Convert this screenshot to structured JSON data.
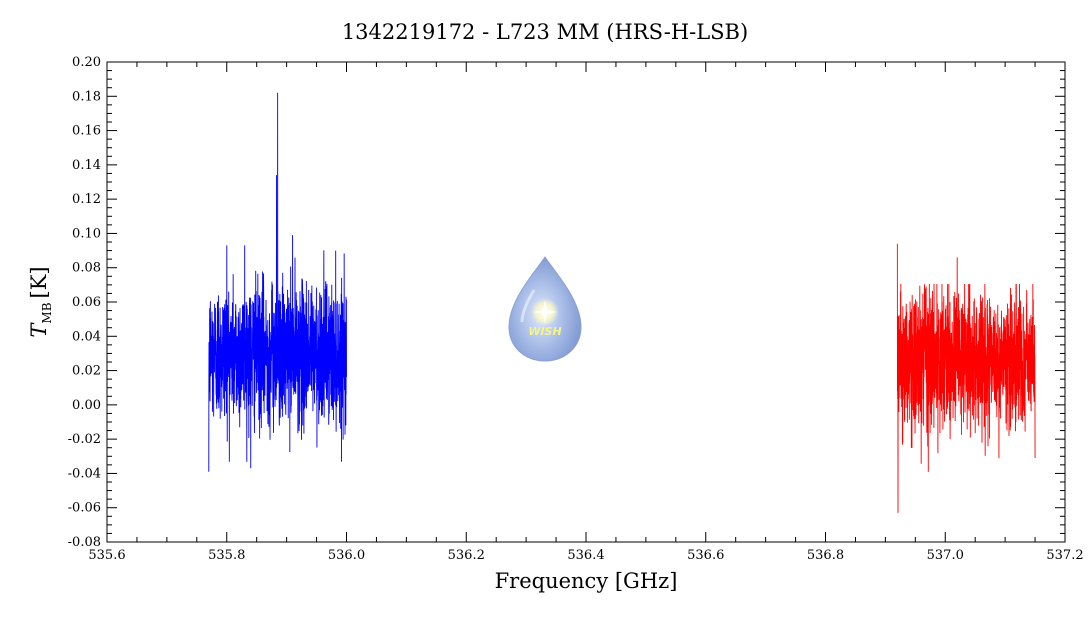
{
  "chart_data": {
    "type": "line",
    "title": "1342219172 - L723 MM (HRS-H-LSB)",
    "xlabel": "Frequency [GHz]",
    "ylabel": {
      "main": "T",
      "sub": "MB",
      "unit": "[K]"
    },
    "xlim": [
      535.6,
      537.2
    ],
    "ylim": [
      -0.08,
      0.2
    ],
    "x_ticks": [
      "535.6",
      "535.8",
      "536.0",
      "536.2",
      "536.4",
      "536.6",
      "536.8",
      "537.0",
      "537.2"
    ],
    "y_ticks": [
      "-0.08",
      "-0.06",
      "-0.04",
      "-0.02",
      "0.00",
      "0.02",
      "0.04",
      "0.06",
      "0.08",
      "0.10",
      "0.12",
      "0.14",
      "0.16",
      "0.18",
      "0.20"
    ],
    "grid": false,
    "series": [
      {
        "color": "#0000ff",
        "x_range": [
          535.77,
          536.0
        ],
        "baseline": 0.03,
        "noise_rms": 0.02,
        "min": -0.039,
        "max": 0.182,
        "features": [
          {
            "x": 535.885,
            "y": 0.182
          },
          {
            "x": 535.883,
            "y": 0.134
          },
          {
            "x": 535.91,
            "y": 0.099
          },
          {
            "x": 535.8,
            "y": 0.093
          },
          {
            "x": 535.83,
            "y": 0.093
          },
          {
            "x": 535.77,
            "y": -0.039
          },
          {
            "x": 535.84,
            "y": -0.037
          }
        ]
      },
      {
        "color": "#ff0000",
        "x_range": [
          536.92,
          537.15
        ],
        "baseline": 0.025,
        "noise_rms": 0.02,
        "min": -0.063,
        "max": 0.094,
        "features": [
          {
            "x": 536.92,
            "y": 0.094
          },
          {
            "x": 536.921,
            "y": -0.063
          },
          {
            "x": 537.02,
            "y": 0.086
          },
          {
            "x": 537.15,
            "y": -0.031
          }
        ]
      }
    ],
    "logo": {
      "label": "WISH"
    }
  }
}
